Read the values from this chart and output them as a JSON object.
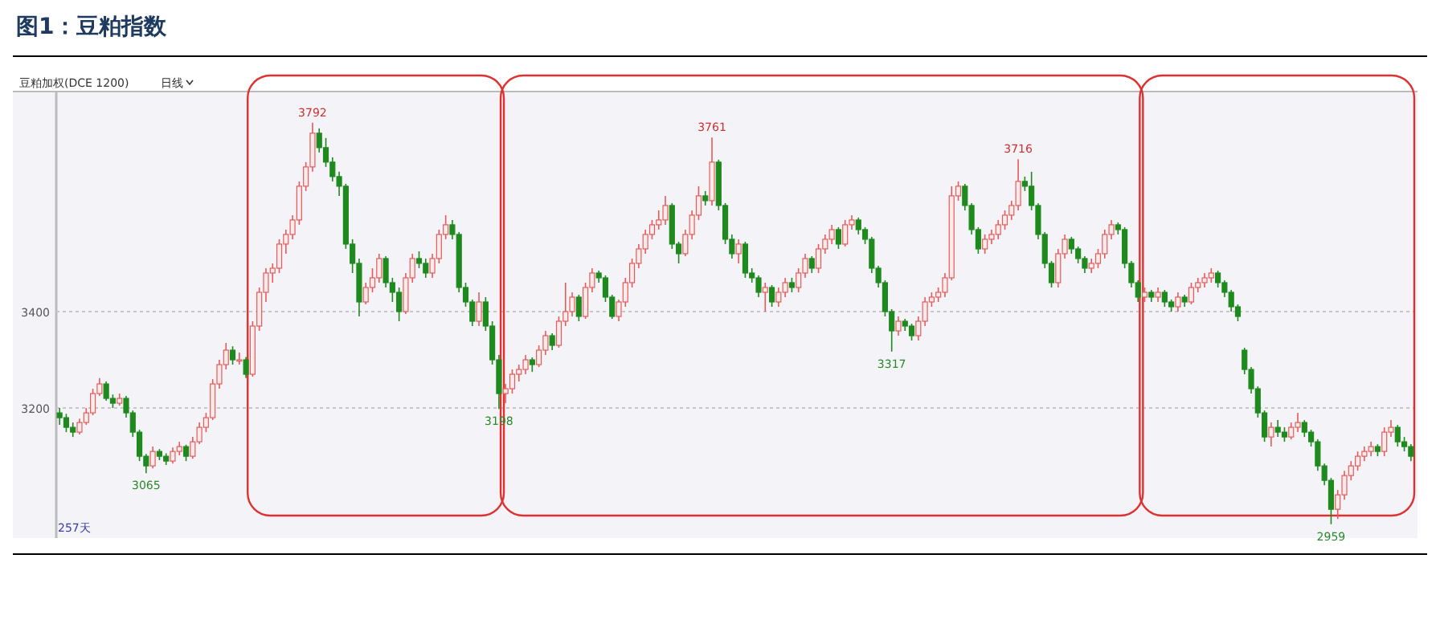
{
  "chart_data": {
    "type": "candlestick",
    "title": "图1：豆粕指数",
    "subtitle": "豆粕加权(DCE 1200)",
    "annotations": [
      "日线",
      "257天",
      {
        "text": "3792",
        "y": 3792
      },
      {
        "text": "3065",
        "y": 3065
      },
      {
        "text": "3198",
        "y": 3198
      },
      {
        "text": "3761",
        "y": 3761
      },
      {
        "text": "3317",
        "y": 3317
      },
      {
        "text": "3716",
        "y": 3716
      },
      {
        "text": "2959",
        "y": 2959
      }
    ],
    "ylim": [
      2937,
      3853
    ],
    "yticks": [
      3200,
      3400
    ],
    "grid": "y",
    "tick_labels": "y",
    "categories": [
      null,
      null,
      null,
      null,
      null,
      null,
      null,
      null,
      null,
      null,
      null,
      null,
      null,
      null,
      null,
      null,
      null,
      null,
      null,
      null,
      null,
      null,
      null,
      null,
      null,
      null,
      null,
      null,
      null,
      null,
      null,
      null,
      null,
      null,
      null,
      null,
      null,
      null,
      null,
      null,
      null,
      null,
      null,
      null,
      null,
      null,
      null,
      null,
      null,
      null,
      null,
      null,
      null,
      null,
      null,
      null,
      null,
      null,
      null,
      null,
      null,
      null,
      null,
      null,
      null,
      null,
      null,
      null,
      null,
      null,
      null,
      null,
      null,
      null,
      null,
      null,
      null,
      null,
      null,
      null,
      null,
      null,
      null,
      null,
      null,
      null,
      null,
      null,
      null,
      null,
      null,
      null,
      null,
      null,
      null,
      null,
      null,
      null,
      null,
      null,
      null,
      null,
      null,
      null,
      null,
      null,
      null,
      null,
      null,
      null,
      null,
      null,
      null,
      null,
      null,
      null,
      null,
      null,
      null,
      null,
      null,
      null,
      null,
      null,
      null,
      null,
      null,
      null,
      null,
      null,
      null,
      null,
      null,
      null,
      null,
      null,
      null,
      null,
      null,
      null,
      null,
      null,
      null,
      null,
      null,
      null,
      null,
      null,
      null,
      null,
      null,
      null,
      null,
      null,
      null,
      null,
      null,
      null,
      null,
      null,
      null,
      null,
      null,
      null,
      null,
      null,
      null,
      null,
      null,
      null,
      null,
      null,
      null,
      null,
      null,
      null,
      null,
      null,
      null,
      null,
      null,
      null,
      null,
      null,
      null,
      null,
      null,
      null,
      null,
      null,
      null,
      null,
      null,
      null,
      null,
      null,
      null,
      null,
      null,
      null,
      null,
      null,
      null,
      null
    ],
    "ohlc": [
      [
        3190,
        3200,
        3165,
        3180
      ],
      [
        3180,
        3188,
        3150,
        3160
      ],
      [
        3160,
        3170,
        3140,
        3150
      ],
      [
        3150,
        3178,
        3145,
        3170
      ],
      [
        3170,
        3200,
        3165,
        3190
      ],
      [
        3190,
        3240,
        3185,
        3230
      ],
      [
        3230,
        3262,
        3225,
        3250
      ],
      [
        3250,
        3255,
        3215,
        3220
      ],
      [
        3220,
        3228,
        3200,
        3210
      ],
      [
        3210,
        3230,
        3205,
        3220
      ],
      [
        3220,
        3225,
        3180,
        3190
      ],
      [
        3190,
        3195,
        3140,
        3150
      ],
      [
        3150,
        3155,
        3090,
        3100
      ],
      [
        3100,
        3105,
        3065,
        3080
      ],
      [
        3080,
        3120,
        3075,
        3110
      ],
      [
        3110,
        3115,
        3092,
        3100
      ],
      [
        3100,
        3106,
        3082,
        3090
      ],
      [
        3090,
        3118,
        3085,
        3110
      ],
      [
        3110,
        3130,
        3102,
        3120
      ],
      [
        3120,
        3124,
        3090,
        3100
      ],
      [
        3100,
        3140,
        3095,
        3130
      ],
      [
        3130,
        3170,
        3125,
        3160
      ],
      [
        3160,
        3190,
        3150,
        3180
      ],
      [
        3180,
        3260,
        3175,
        3250
      ],
      [
        3250,
        3300,
        3240,
        3290
      ],
      [
        3290,
        3335,
        3280,
        3320
      ],
      [
        3320,
        3328,
        3290,
        3300
      ],
      [
        3300,
        3315,
        3290,
        3300
      ],
      [
        3300,
        3306,
        3262,
        3270
      ],
      [
        3270,
        3380,
        3265,
        3370
      ],
      [
        3370,
        3450,
        3360,
        3440
      ],
      [
        3440,
        3490,
        3420,
        3480
      ],
      [
        3480,
        3500,
        3460,
        3490
      ],
      [
        3490,
        3550,
        3480,
        3540
      ],
      [
        3540,
        3570,
        3520,
        3560
      ],
      [
        3560,
        3600,
        3550,
        3590
      ],
      [
        3590,
        3670,
        3580,
        3660
      ],
      [
        3660,
        3710,
        3650,
        3700
      ],
      [
        3700,
        3792,
        3690,
        3770
      ],
      [
        3770,
        3780,
        3730,
        3740
      ],
      [
        3740,
        3760,
        3700,
        3710
      ],
      [
        3710,
        3720,
        3670,
        3680
      ],
      [
        3680,
        3690,
        3640,
        3660
      ],
      [
        3660,
        3665,
        3530,
        3540
      ],
      [
        3540,
        3550,
        3480,
        3500
      ],
      [
        3500,
        3510,
        3390,
        3420
      ],
      [
        3420,
        3460,
        3415,
        3450
      ],
      [
        3450,
        3490,
        3440,
        3470
      ],
      [
        3470,
        3520,
        3460,
        3510
      ],
      [
        3510,
        3515,
        3450,
        3460
      ],
      [
        3460,
        3470,
        3420,
        3440
      ],
      [
        3440,
        3450,
        3380,
        3400
      ],
      [
        3400,
        3480,
        3395,
        3470
      ],
      [
        3470,
        3520,
        3460,
        3510
      ],
      [
        3510,
        3525,
        3490,
        3500
      ],
      [
        3500,
        3510,
        3470,
        3480
      ],
      [
        3480,
        3520,
        3470,
        3510
      ],
      [
        3510,
        3570,
        3500,
        3560
      ],
      [
        3560,
        3600,
        3550,
        3580
      ],
      [
        3580,
        3590,
        3550,
        3560
      ],
      [
        3560,
        3565,
        3440,
        3450
      ],
      [
        3450,
        3460,
        3410,
        3420
      ],
      [
        3420,
        3425,
        3370,
        3380
      ],
      [
        3380,
        3440,
        3370,
        3420
      ],
      [
        3420,
        3430,
        3360,
        3370
      ],
      [
        3370,
        3380,
        3290,
        3300
      ],
      [
        3300,
        3310,
        3198,
        3230
      ],
      [
        3230,
        3250,
        3210,
        3240
      ],
      [
        3240,
        3280,
        3230,
        3270
      ],
      [
        3270,
        3290,
        3255,
        3280
      ],
      [
        3280,
        3310,
        3270,
        3300
      ],
      [
        3300,
        3305,
        3275,
        3290
      ],
      [
        3290,
        3330,
        3285,
        3320
      ],
      [
        3320,
        3360,
        3310,
        3350
      ],
      [
        3350,
        3355,
        3320,
        3330
      ],
      [
        3330,
        3390,
        3325,
        3380
      ],
      [
        3380,
        3460,
        3370,
        3400
      ],
      [
        3400,
        3440,
        3390,
        3430
      ],
      [
        3430,
        3435,
        3380,
        3390
      ],
      [
        3390,
        3460,
        3385,
        3450
      ],
      [
        3450,
        3490,
        3440,
        3480
      ],
      [
        3480,
        3485,
        3460,
        3470
      ],
      [
        3470,
        3475,
        3420,
        3430
      ],
      [
        3430,
        3435,
        3385,
        3390
      ],
      [
        3390,
        3425,
        3380,
        3420
      ],
      [
        3420,
        3470,
        3410,
        3460
      ],
      [
        3460,
        3510,
        3450,
        3500
      ],
      [
        3500,
        3540,
        3490,
        3530
      ],
      [
        3530,
        3570,
        3520,
        3560
      ],
      [
        3560,
        3590,
        3550,
        3580
      ],
      [
        3580,
        3610,
        3570,
        3590
      ],
      [
        3590,
        3640,
        3580,
        3620
      ],
      [
        3620,
        3625,
        3530,
        3540
      ],
      [
        3540,
        3545,
        3500,
        3520
      ],
      [
        3520,
        3570,
        3515,
        3560
      ],
      [
        3560,
        3610,
        3550,
        3600
      ],
      [
        3600,
        3660,
        3590,
        3640
      ],
      [
        3640,
        3650,
        3620,
        3630
      ],
      [
        3630,
        3761,
        3620,
        3710
      ],
      [
        3710,
        3715,
        3610,
        3620
      ],
      [
        3620,
        3625,
        3540,
        3550
      ],
      [
        3550,
        3560,
        3510,
        3520
      ],
      [
        3520,
        3550,
        3500,
        3540
      ],
      [
        3540,
        3545,
        3470,
        3480
      ],
      [
        3480,
        3490,
        3460,
        3470
      ],
      [
        3470,
        3475,
        3430,
        3440
      ],
      [
        3440,
        3460,
        3400,
        3450
      ],
      [
        3450,
        3455,
        3410,
        3420
      ],
      [
        3420,
        3450,
        3410,
        3440
      ],
      [
        3440,
        3470,
        3430,
        3460
      ],
      [
        3460,
        3470,
        3440,
        3450
      ],
      [
        3450,
        3490,
        3440,
        3480
      ],
      [
        3480,
        3520,
        3470,
        3510
      ],
      [
        3510,
        3515,
        3480,
        3490
      ],
      [
        3490,
        3540,
        3480,
        3530
      ],
      [
        3530,
        3560,
        3520,
        3550
      ],
      [
        3550,
        3580,
        3540,
        3570
      ],
      [
        3570,
        3575,
        3530,
        3540
      ],
      [
        3540,
        3590,
        3535,
        3580
      ],
      [
        3580,
        3600,
        3570,
        3590
      ],
      [
        3590,
        3595,
        3560,
        3570
      ],
      [
        3570,
        3575,
        3540,
        3550
      ],
      [
        3550,
        3555,
        3480,
        3490
      ],
      [
        3490,
        3495,
        3450,
        3460
      ],
      [
        3460,
        3465,
        3390,
        3400
      ],
      [
        3400,
        3405,
        3317,
        3360
      ],
      [
        3360,
        3390,
        3350,
        3380
      ],
      [
        3380,
        3385,
        3360,
        3370
      ],
      [
        3370,
        3375,
        3340,
        3350
      ],
      [
        3350,
        3390,
        3340,
        3380
      ],
      [
        3380,
        3430,
        3370,
        3420
      ],
      [
        3420,
        3440,
        3410,
        3430
      ],
      [
        3430,
        3450,
        3420,
        3440
      ],
      [
        3440,
        3480,
        3430,
        3470
      ],
      [
        3470,
        3660,
        3465,
        3640
      ],
      [
        3640,
        3670,
        3630,
        3660
      ],
      [
        3660,
        3665,
        3610,
        3620
      ],
      [
        3620,
        3625,
        3560,
        3570
      ],
      [
        3570,
        3575,
        3520,
        3530
      ],
      [
        3530,
        3560,
        3520,
        3550
      ],
      [
        3550,
        3570,
        3540,
        3560
      ],
      [
        3560,
        3590,
        3550,
        3580
      ],
      [
        3580,
        3610,
        3570,
        3600
      ],
      [
        3600,
        3630,
        3590,
        3620
      ],
      [
        3620,
        3716,
        3610,
        3670
      ],
      [
        3670,
        3680,
        3650,
        3660
      ],
      [
        3660,
        3690,
        3610,
        3620
      ],
      [
        3620,
        3625,
        3550,
        3560
      ],
      [
        3560,
        3565,
        3490,
        3500
      ],
      [
        3500,
        3505,
        3450,
        3460
      ],
      [
        3460,
        3530,
        3450,
        3520
      ],
      [
        3520,
        3560,
        3510,
        3550
      ],
      [
        3550,
        3555,
        3520,
        3530
      ],
      [
        3530,
        3535,
        3500,
        3510
      ],
      [
        3510,
        3515,
        3480,
        3490
      ],
      [
        3490,
        3510,
        3480,
        3500
      ],
      [
        3500,
        3530,
        3490,
        3520
      ],
      [
        3520,
        3570,
        3510,
        3560
      ],
      [
        3560,
        3590,
        3550,
        3580
      ],
      [
        3580,
        3585,
        3560,
        3570
      ],
      [
        3570,
        3575,
        3490,
        3500
      ],
      [
        3500,
        3505,
        3450,
        3460
      ],
      [
        3460,
        3465,
        3420,
        3430
      ],
      [
        3430,
        3450,
        3420,
        3440
      ],
      [
        3440,
        3445,
        3420,
        3430
      ],
      [
        3430,
        3450,
        3420,
        3440
      ],
      [
        3440,
        3445,
        3410,
        3420
      ],
      [
        3420,
        3425,
        3400,
        3410
      ],
      [
        3410,
        3440,
        3400,
        3430
      ],
      [
        3430,
        3435,
        3410,
        3420
      ],
      [
        3420,
        3460,
        3415,
        3450
      ],
      [
        3450,
        3470,
        3440,
        3460
      ],
      [
        3460,
        3480,
        3450,
        3470
      ],
      [
        3470,
        3490,
        3460,
        3480
      ],
      [
        3480,
        3485,
        3450,
        3460
      ],
      [
        3460,
        3465,
        3430,
        3440
      ],
      [
        3440,
        3445,
        3400,
        3410
      ],
      [
        3410,
        3415,
        3380,
        3390
      ],
      [
        3320,
        3325,
        3270,
        3280
      ],
      [
        3280,
        3285,
        3230,
        3240
      ],
      [
        3240,
        3245,
        3180,
        3190
      ],
      [
        3190,
        3195,
        3130,
        3140
      ],
      [
        3140,
        3170,
        3120,
        3160
      ],
      [
        3160,
        3175,
        3140,
        3150
      ],
      [
        3150,
        3160,
        3130,
        3140
      ],
      [
        3140,
        3170,
        3135,
        3160
      ],
      [
        3160,
        3190,
        3150,
        3170
      ],
      [
        3170,
        3175,
        3140,
        3150
      ],
      [
        3150,
        3155,
        3120,
        3130
      ],
      [
        3130,
        3135,
        3070,
        3080
      ],
      [
        3080,
        3085,
        3040,
        3050
      ],
      [
        3050,
        3055,
        2959,
        2990
      ],
      [
        2990,
        3030,
        2970,
        3020
      ],
      [
        3020,
        3070,
        3010,
        3060
      ],
      [
        3060,
        3090,
        3050,
        3080
      ],
      [
        3080,
        3110,
        3070,
        3100
      ],
      [
        3100,
        3120,
        3090,
        3110
      ],
      [
        3110,
        3130,
        3100,
        3120
      ],
      [
        3120,
        3125,
        3100,
        3110
      ],
      [
        3110,
        3160,
        3100,
        3150
      ],
      [
        3150,
        3175,
        3140,
        3160
      ],
      [
        3160,
        3165,
        3120,
        3130
      ],
      [
        3130,
        3140,
        3110,
        3120
      ],
      [
        3120,
        3125,
        3090,
        3100
      ]
    ]
  }
}
